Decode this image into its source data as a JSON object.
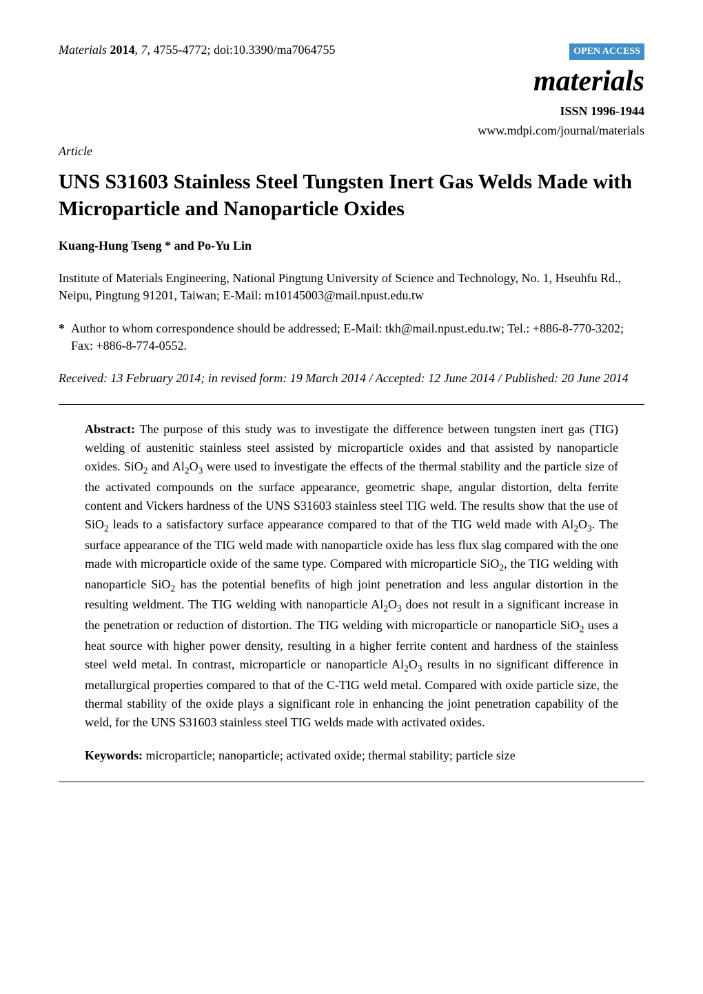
{
  "header": {
    "citation_journal": "Materials",
    "citation_year": "2014",
    "citation_volume": "7",
    "citation_pages": "4755-4772",
    "citation_doi": "doi:10.3390/ma7064755",
    "open_access_label": "OPEN ACCESS",
    "journal_name": "materials",
    "issn": "ISSN 1996-1944",
    "journal_url": "www.mdpi.com/journal/materials"
  },
  "article": {
    "type_label": "Article",
    "title": "UNS S31603 Stainless Steel Tungsten Inert Gas Welds Made with Microparticle and Nanoparticle Oxides",
    "authors": "Kuang-Hung Tseng * and Po-Yu Lin",
    "affiliation": "Institute of Materials Engineering, National Pingtung University of Science and Technology, No. 1, Hseuhfu Rd., Neipu, Pingtung 91201, Taiwan; E-Mail: m10145003@mail.npust.edu.tw",
    "correspondence_star": "*",
    "correspondence": "Author to whom correspondence should be addressed; E-Mail: tkh@mail.npust.edu.tw; Tel.: +886-8-770-3202; Fax: +886-8-774-0552.",
    "dates": "Received: 13 February 2014; in revised form: 19 March 2014 / Accepted: 12 June 2014 / Published: 20 June 2014"
  },
  "abstract": {
    "label": "Abstract:",
    "text_part1": " The purpose of this study was to investigate the difference between tungsten inert gas (TIG) welding of austenitic stainless steel assisted by microparticle oxides and that assisted by nanoparticle oxides. SiO",
    "text_part2": " and Al",
    "text_part3": "O",
    "text_part4": " were used to investigate the effects of the thermal stability and the particle size of the activated compounds on the surface appearance, geometric shape, angular distortion, delta ferrite content and Vickers hardness of the UNS S31603 stainless steel TIG weld. The results show that the use of SiO",
    "text_part5": " leads to a satisfactory surface appearance compared to that of the TIG weld made with Al",
    "text_part6": "O",
    "text_part7": ". The surface appearance of the TIG weld made with nanoparticle oxide has less flux slag compared with the one made with microparticle oxide of the same type. Compared with microparticle SiO",
    "text_part8": ", the TIG welding with nanoparticle SiO",
    "text_part9": " has the potential benefits of high joint penetration and less angular distortion in the resulting weldment. The TIG welding with nanoparticle Al",
    "text_part10": "O",
    "text_part11": " does not result in a significant increase in the penetration or reduction of distortion. The TIG welding with microparticle or nanoparticle SiO",
    "text_part12": " uses a heat source with higher power density, resulting in a higher ferrite content and hardness of the stainless steel weld metal. In contrast, microparticle or nanoparticle Al",
    "text_part13": "O",
    "text_part14": " results in no significant difference in metallurgical properties compared to that of the C-TIG weld metal. Compared with oxide particle size, the thermal stability of the oxide plays a significant role in enhancing the joint penetration capability of the weld, for the UNS S31603 stainless steel TIG welds made with activated oxides."
  },
  "keywords": {
    "label": "Keywords:",
    "text": " microparticle; nanoparticle; activated oxide; thermal stability; particle size"
  },
  "colors": {
    "open_access_bg": "#408fc8",
    "open_access_fg": "#ffffff",
    "text": "#000000",
    "background": "#ffffff"
  },
  "typography": {
    "body_font": "Times New Roman",
    "body_size_pt": 12,
    "title_size_pt": 20,
    "journal_name_size_pt": 28
  }
}
